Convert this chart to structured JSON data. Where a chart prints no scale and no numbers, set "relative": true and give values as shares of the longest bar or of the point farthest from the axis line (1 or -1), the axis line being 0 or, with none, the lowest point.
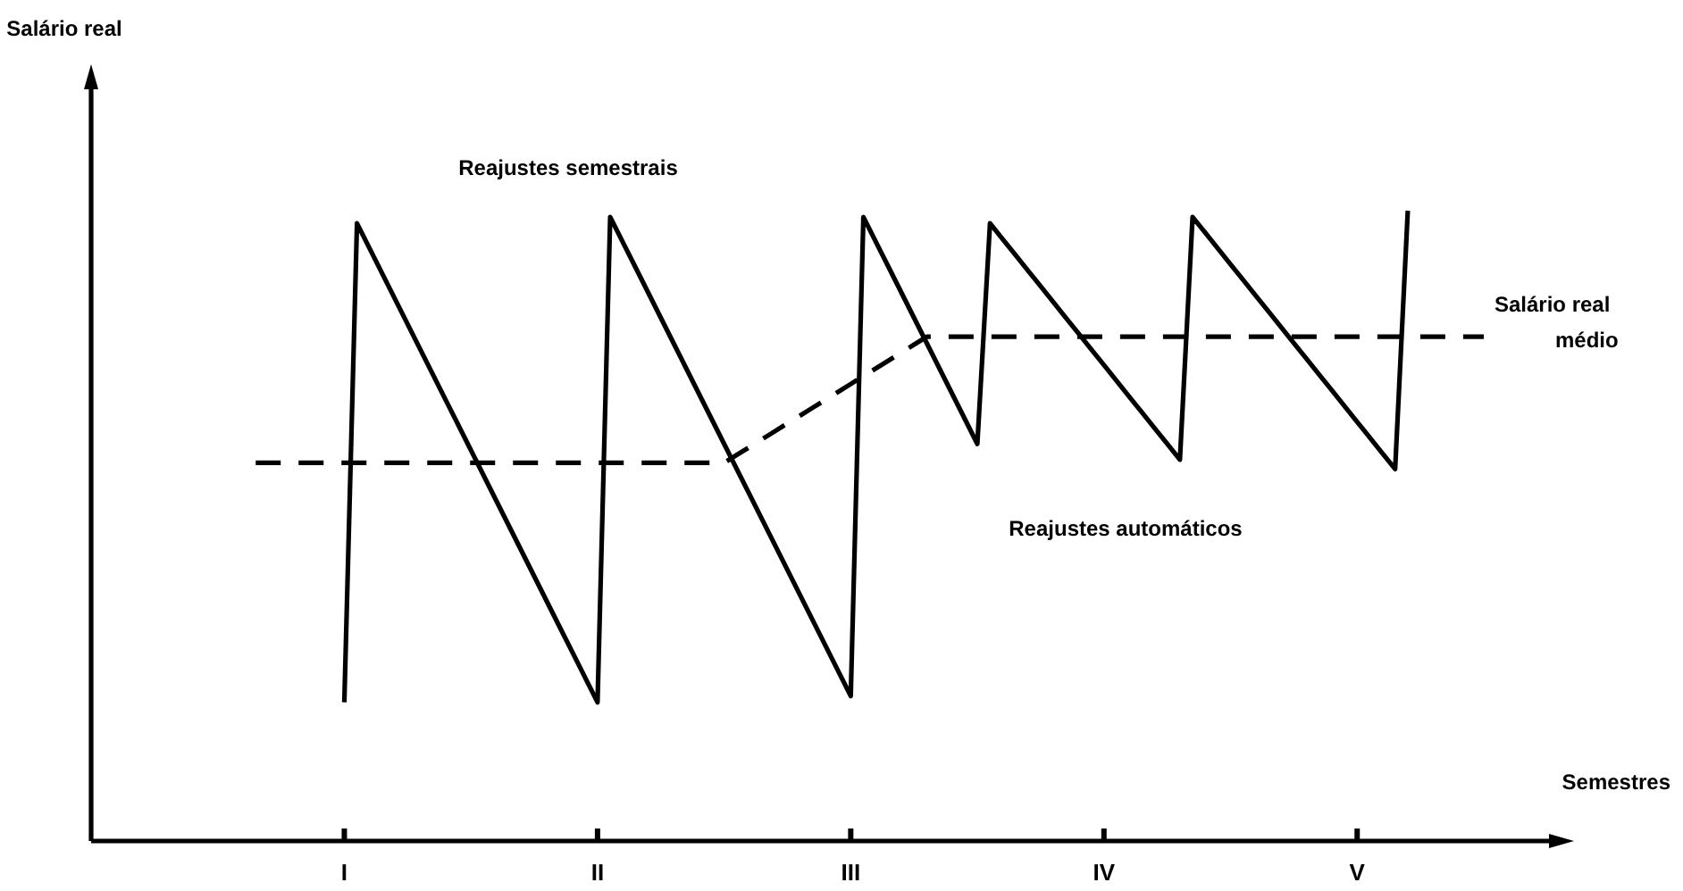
{
  "chart_data": {
    "type": "line",
    "relative": true,
    "xlabel": "Semestres",
    "tick_labels": "x",
    "categories": [
      null,
      null,
      null,
      null,
      null,
      null,
      null,
      null,
      null,
      null,
      null,
      null,
      null,
      null,
      null,
      null,
      null,
      null,
      null,
      "I",
      null,
      null,
      null,
      null,
      null,
      null,
      null,
      null,
      null,
      null,
      null,
      null,
      null,
      null,
      null,
      null,
      null,
      null,
      null,
      "II",
      null,
      null,
      null,
      null,
      null,
      null,
      null,
      null,
      null,
      null,
      null,
      null,
      null,
      null,
      null,
      null,
      null,
      null,
      null,
      "III",
      null,
      null,
      null,
      null,
      null,
      null,
      null,
      null,
      null,
      null,
      null,
      null,
      null,
      null,
      null,
      null,
      null,
      null,
      null,
      "IV",
      null,
      null,
      null,
      null,
      null,
      null,
      null,
      null,
      null,
      null,
      null,
      null,
      null,
      null,
      null,
      null,
      null,
      null,
      null,
      "V",
      null,
      null,
      null,
      null,
      null,
      null,
      null,
      null,
      null,
      null,
      null,
      null,
      null,
      null,
      null,
      null
    ],
    "series": [
      {
        "color": "#000000",
        "line_style": "solid",
        "values": [
          null,
          null,
          null,
          null,
          null,
          null,
          null,
          null,
          null,
          null,
          null,
          null,
          null,
          null,
          null,
          null,
          null,
          null,
          null,
          0.22,
          0.98,
          0.94,
          0.9,
          0.86,
          0.82,
          0.78,
          0.74,
          0.7,
          0.66,
          0.62,
          0.58,
          0.54,
          0.5,
          0.46,
          0.42,
          0.38,
          0.34,
          0.3,
          0.26,
          0.22,
          0.99,
          0.95,
          0.91,
          0.87,
          0.83,
          0.79,
          0.75,
          0.71,
          0.67,
          0.63,
          0.59,
          0.55,
          0.51,
          0.47,
          0.43,
          0.39,
          0.35,
          0.31,
          0.27,
          0.23,
          0.99,
          0.95,
          0.91,
          0.87,
          0.83,
          0.79,
          0.75,
          0.71,
          0.67,
          0.63,
          0.98,
          0.955,
          0.93,
          0.905,
          0.88,
          0.855,
          0.83,
          0.805,
          0.78,
          0.755,
          0.73,
          0.705,
          0.68,
          0.655,
          0.63,
          0.605,
          0.99,
          0.965,
          0.94,
          0.915,
          0.89,
          0.865,
          0.84,
          0.815,
          0.79,
          0.765,
          0.74,
          0.715,
          0.69,
          0.665,
          0.64,
          0.615,
          0.59,
          1,
          null,
          null,
          null,
          null,
          null,
          null,
          null,
          null,
          null,
          null,
          null,
          null
        ]
      },
      {
        "name": "Salário real médio",
        "color": "#000000",
        "line_style": "dashed",
        "values": [
          null,
          null,
          null,
          null,
          null,
          null,
          null,
          null,
          null,
          null,
          null,
          null,
          0.6,
          0.6,
          0.6,
          0.6,
          0.6,
          0.6,
          0.6,
          0.6,
          0.6,
          0.6,
          0.6,
          0.6,
          0.6,
          0.6,
          0.6,
          0.6,
          0.6,
          0.6,
          0.6,
          0.6,
          0.6,
          0.6,
          0.6,
          0.6,
          0.6,
          0.6,
          0.6,
          0.6,
          0.6,
          0.6,
          0.6,
          0.6,
          0.6,
          0.6,
          0.6,
          0.6,
          0.6,
          0.6,
          0.6125,
          0.625,
          0.6375,
          0.65,
          0.6625,
          0.675,
          0.6875,
          0.7,
          0.7125,
          0.725,
          0.7375,
          0.75,
          0.7625,
          0.775,
          0.7875,
          0.8,
          0.8,
          0.8,
          0.8,
          0.8,
          0.8,
          0.8,
          0.8,
          0.8,
          0.8,
          0.8,
          0.8,
          0.8,
          0.8,
          0.8,
          0.8,
          0.8,
          0.8,
          0.8,
          0.8,
          0.8,
          0.8,
          0.8,
          0.8,
          0.8,
          0.8,
          0.8,
          0.8,
          0.8,
          0.8,
          0.8,
          0.8,
          0.8,
          0.8,
          0.8,
          0.8,
          0.8,
          0.8,
          0.8,
          0.8,
          0.8,
          0.8,
          0.8,
          0.8,
          0.8,
          null,
          null,
          null,
          null,
          null,
          null
        ]
      }
    ],
    "annotations": [
      "Reajustes semestrais",
      "Reajustes automáticos",
      "Salário real"
    ]
  }
}
